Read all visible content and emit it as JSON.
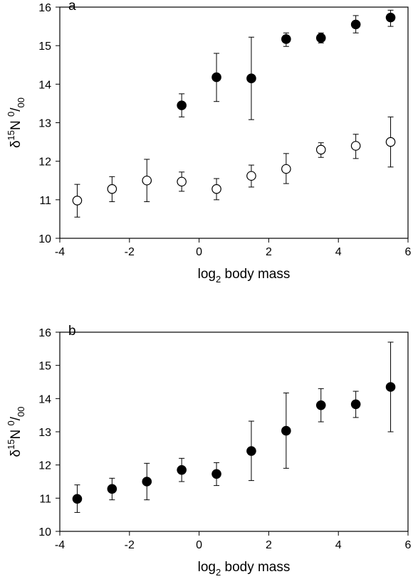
{
  "chart_data": [
    {
      "type": "scatter",
      "panel_label": "a",
      "xlabel": {
        "main": "log",
        "sub": "2",
        "rest": " body mass"
      },
      "ylabel": {
        "delta": "δ",
        "sup1": "15",
        "mid": "N ",
        "sup2": "0",
        "slash": "/",
        "sub": "00"
      },
      "xlim": [
        -4,
        6
      ],
      "ylim": [
        10,
        16
      ],
      "xticks": [
        "-4",
        "-2",
        "0",
        "2",
        "4",
        "6"
      ],
      "yticks": [
        "10",
        "11",
        "12",
        "13",
        "14",
        "15",
        "16"
      ],
      "grid": false,
      "series": [
        {
          "marker": "filled-circle",
          "color": "#000000",
          "points": [
            {
              "x": -0.5,
              "y": 13.45,
              "lo": 13.15,
              "hi": 13.75
            },
            {
              "x": 0.5,
              "y": 14.18,
              "lo": 13.55,
              "hi": 14.8
            },
            {
              "x": 1.5,
              "y": 14.15,
              "lo": 13.08,
              "hi": 15.22
            },
            {
              "x": 2.5,
              "y": 15.17,
              "lo": 14.98,
              "hi": 15.33
            },
            {
              "x": 3.5,
              "y": 15.2,
              "lo": 15.07,
              "hi": 15.33
            },
            {
              "x": 4.5,
              "y": 15.55,
              "lo": 15.33,
              "hi": 15.78
            },
            {
              "x": 5.5,
              "y": 15.73,
              "lo": 15.5,
              "hi": 15.92
            }
          ]
        },
        {
          "marker": "open-circle",
          "color": "#000000",
          "points": [
            {
              "x": -3.5,
              "y": 10.98,
              "lo": 10.55,
              "hi": 11.4
            },
            {
              "x": -2.5,
              "y": 11.28,
              "lo": 10.95,
              "hi": 11.6
            },
            {
              "x": -1.5,
              "y": 11.5,
              "lo": 10.95,
              "hi": 12.05
            },
            {
              "x": -0.5,
              "y": 11.47,
              "lo": 11.22,
              "hi": 11.72
            },
            {
              "x": 0.5,
              "y": 11.28,
              "lo": 11.0,
              "hi": 11.55
            },
            {
              "x": 1.5,
              "y": 11.62,
              "lo": 11.33,
              "hi": 11.9
            },
            {
              "x": 2.5,
              "y": 11.8,
              "lo": 11.42,
              "hi": 12.2
            },
            {
              "x": 3.5,
              "y": 12.3,
              "lo": 12.1,
              "hi": 12.48
            },
            {
              "x": 4.5,
              "y": 12.4,
              "lo": 12.07,
              "hi": 12.7
            },
            {
              "x": 5.5,
              "y": 12.5,
              "lo": 11.85,
              "hi": 13.15
            }
          ]
        }
      ]
    },
    {
      "type": "scatter",
      "panel_label": "b",
      "xlabel": {
        "main": "log",
        "sub": "2",
        "rest": " body mass"
      },
      "ylabel": {
        "delta": "δ",
        "sup1": "15",
        "mid": "N ",
        "sup2": "0",
        "slash": "/",
        "sub": "00"
      },
      "xlim": [
        -4,
        6
      ],
      "ylim": [
        10,
        16
      ],
      "xticks": [
        "-4",
        "-2",
        "0",
        "2",
        "4",
        "6"
      ],
      "yticks": [
        "10",
        "11",
        "12",
        "13",
        "14",
        "15",
        "16"
      ],
      "grid": false,
      "series": [
        {
          "marker": "filled-circle",
          "color": "#000000",
          "points": [
            {
              "x": -3.5,
              "y": 10.98,
              "lo": 10.57,
              "hi": 11.4
            },
            {
              "x": -2.5,
              "y": 11.28,
              "lo": 10.95,
              "hi": 11.6
            },
            {
              "x": -1.5,
              "y": 11.5,
              "lo": 10.95,
              "hi": 12.05
            },
            {
              "x": -0.5,
              "y": 11.85,
              "lo": 11.5,
              "hi": 12.2
            },
            {
              "x": 0.5,
              "y": 11.73,
              "lo": 11.38,
              "hi": 12.07
            },
            {
              "x": 1.5,
              "y": 12.42,
              "lo": 11.53,
              "hi": 13.32
            },
            {
              "x": 2.5,
              "y": 13.03,
              "lo": 11.9,
              "hi": 14.17
            },
            {
              "x": 3.5,
              "y": 13.8,
              "lo": 13.3,
              "hi": 14.3
            },
            {
              "x": 4.5,
              "y": 13.83,
              "lo": 13.43,
              "hi": 14.22
            },
            {
              "x": 5.5,
              "y": 14.35,
              "lo": 13.0,
              "hi": 15.7
            }
          ]
        }
      ]
    }
  ]
}
